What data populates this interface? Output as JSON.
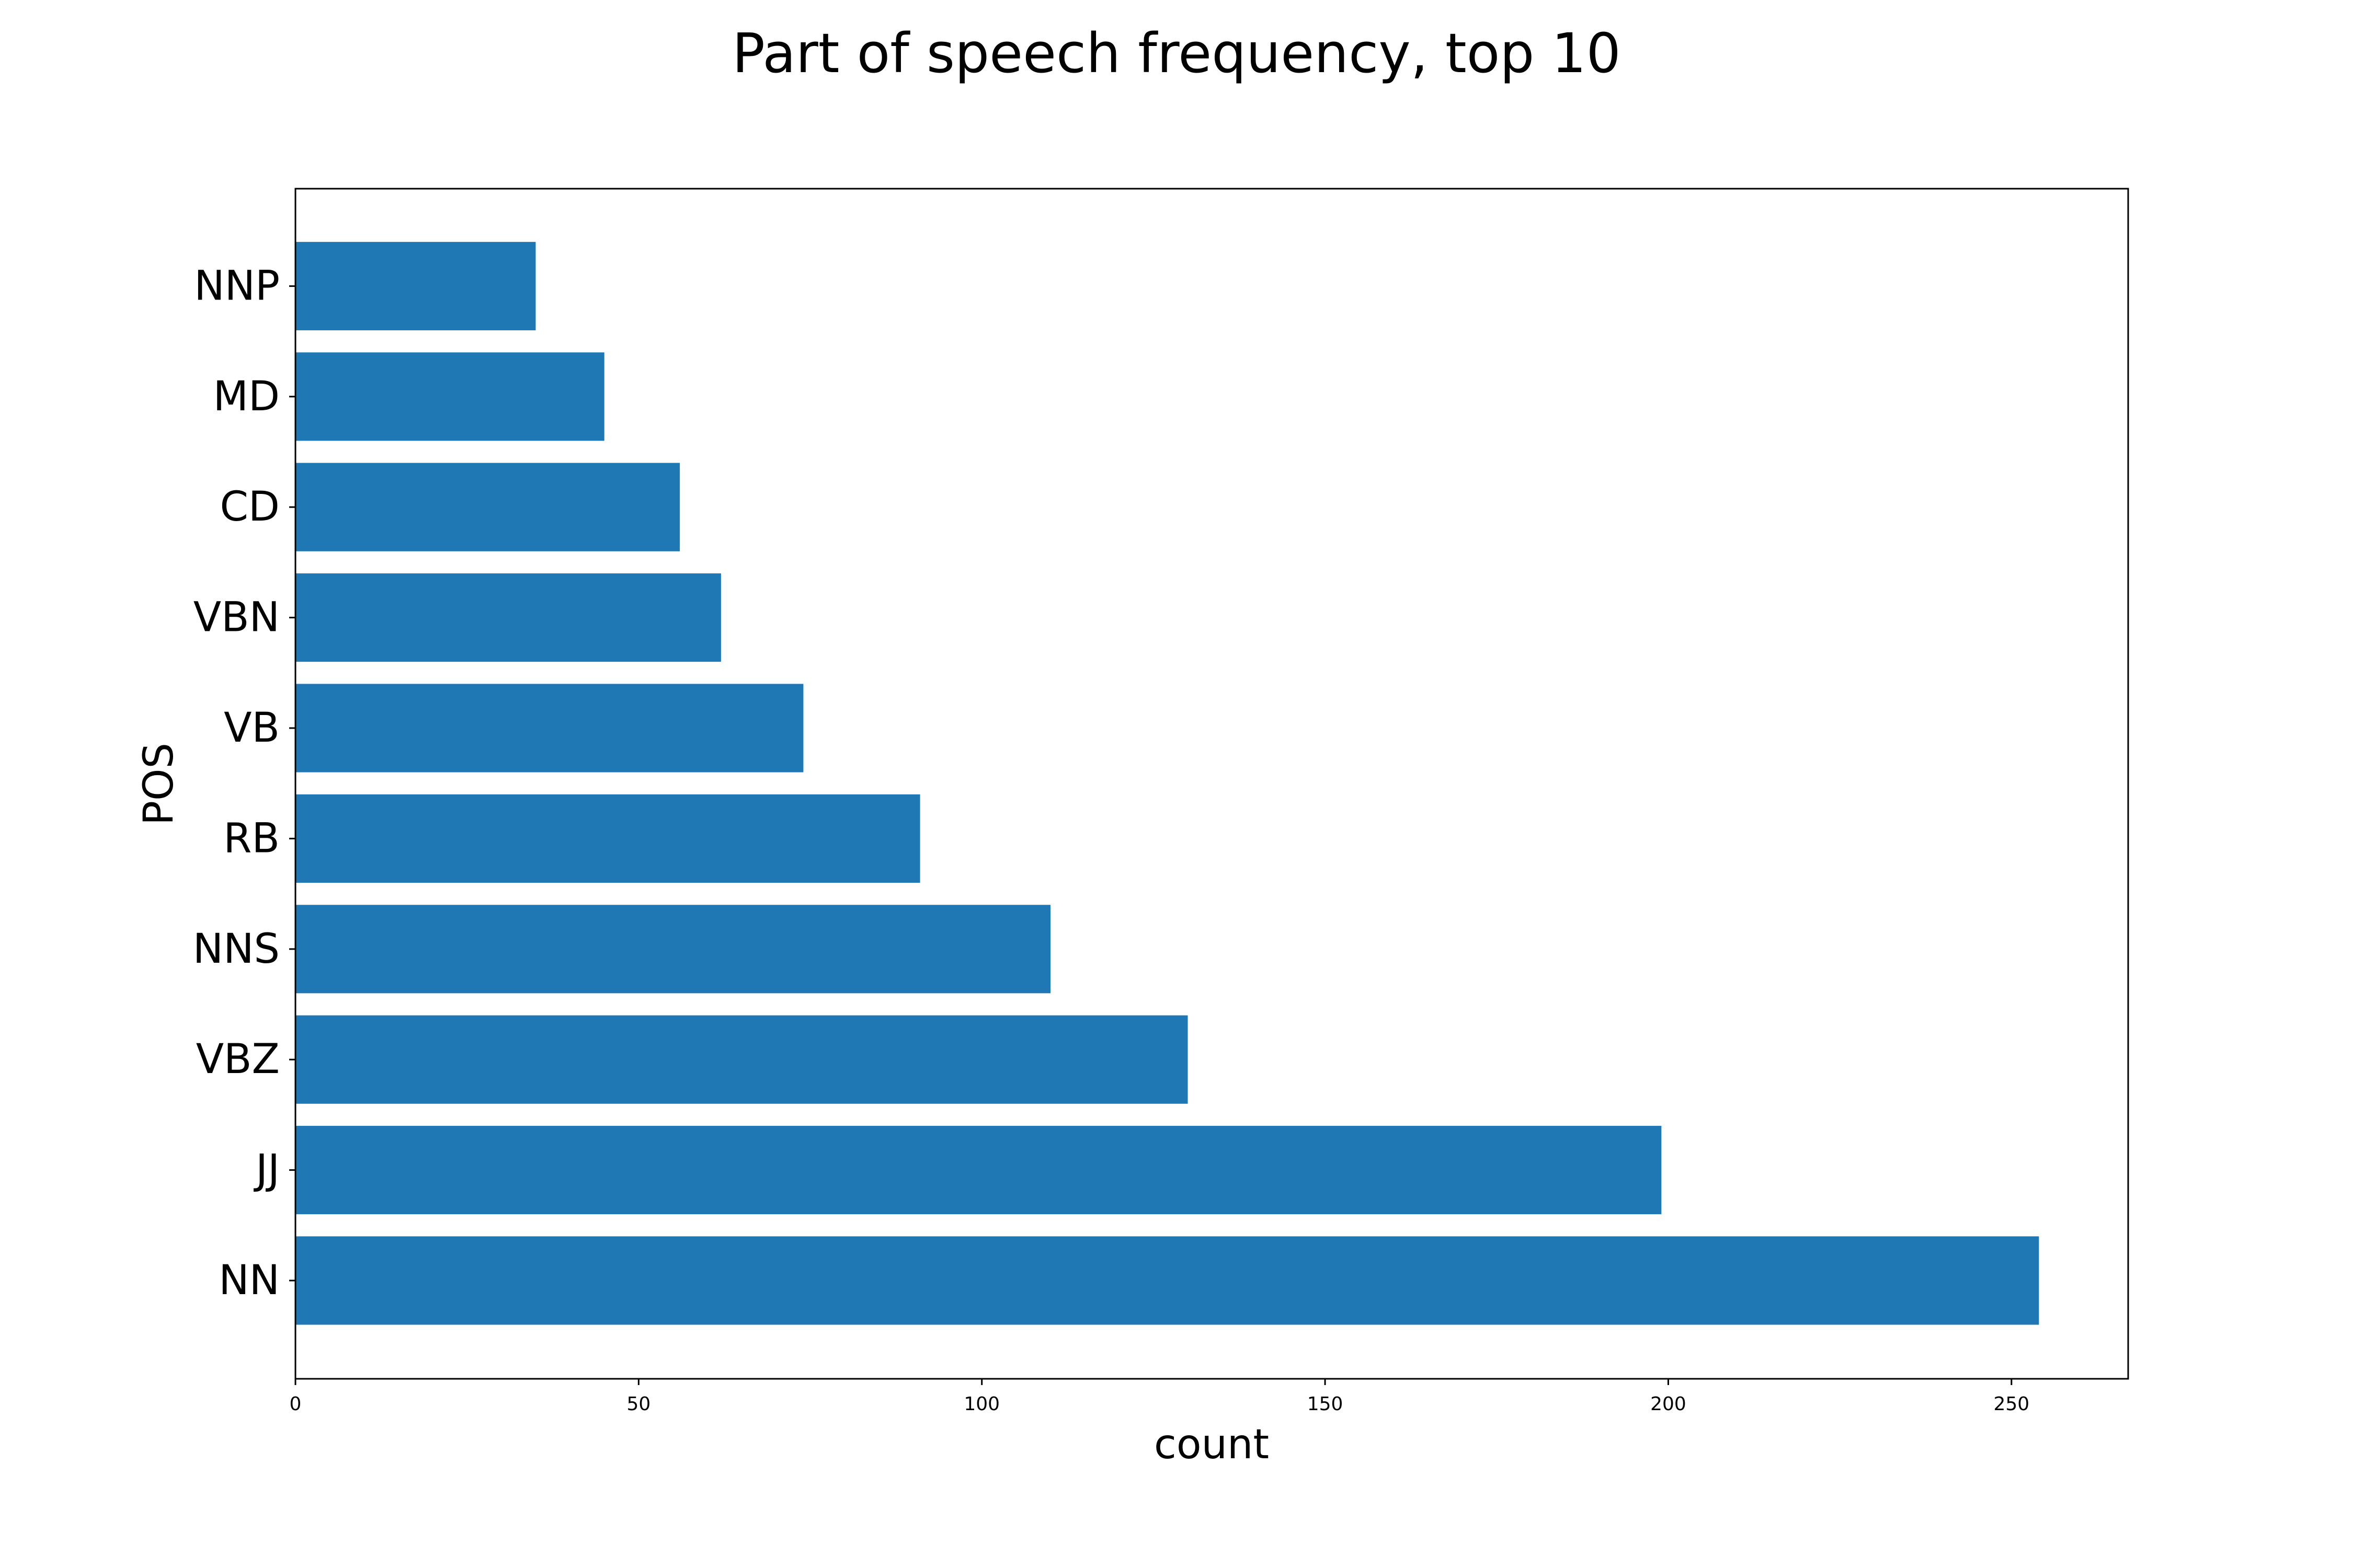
{
  "chart_data": {
    "type": "bar",
    "orientation": "horizontal",
    "title": "Part of speech frequency, top 10",
    "xlabel": "count",
    "ylabel": "POS",
    "categories": [
      "NN",
      "JJ",
      "VBZ",
      "NNS",
      "RB",
      "VB",
      "VBN",
      "CD",
      "MD",
      "NNP"
    ],
    "values": [
      254,
      199,
      130,
      110,
      91,
      74,
      62,
      56,
      45,
      35
    ],
    "xlim": [
      0,
      267
    ],
    "xticks": [
      0,
      50,
      100,
      150,
      200,
      250
    ],
    "grid": false,
    "legend": "none",
    "bar_color": "#1f77b4"
  }
}
